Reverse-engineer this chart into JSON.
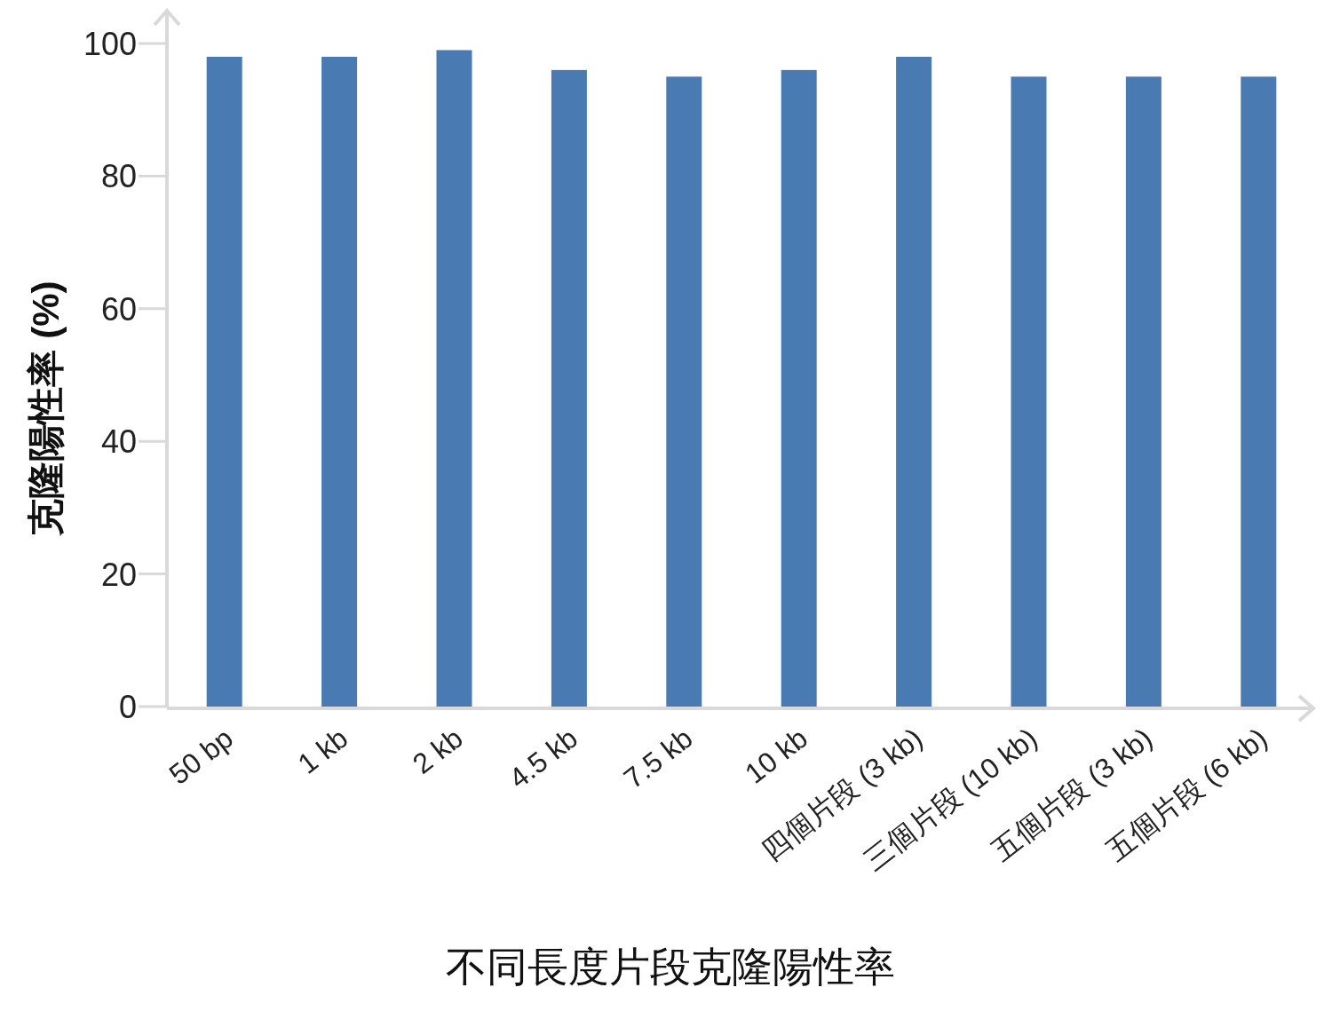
{
  "chart_data": {
    "type": "bar",
    "xlabel": "不同長度片段克隆陽性率",
    "ylabel": "克隆陽性率 (%)",
    "categories": [
      "50 bp",
      "1 kb",
      "2 kb",
      "4.5 kb",
      "7.5 kb",
      "10 kb",
      "四個片段 (3 kb)",
      "三個片段 (10 kb)",
      "五個片段 (3 kb)",
      "五個片段 (6 kb)"
    ],
    "values": [
      98,
      98,
      99,
      96,
      95,
      96,
      98,
      95,
      95,
      95
    ],
    "color": "#4a7ab2",
    "ylim": [
      0,
      100
    ],
    "yticks": [
      0,
      20,
      40,
      60,
      80,
      100
    ],
    "grid": false
  }
}
